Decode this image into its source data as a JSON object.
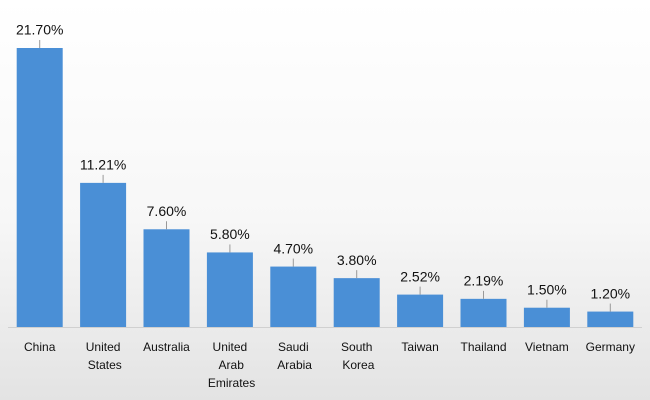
{
  "chart_data": {
    "type": "bar",
    "categories": [
      "China",
      "United States",
      "Australia",
      "United Arab Emirates",
      "Saudi Arabia",
      "South Korea",
      "Taiwan",
      "Thailand",
      "Vietnam",
      "Germany"
    ],
    "values": [
      21.7,
      11.21,
      7.6,
      5.8,
      4.7,
      3.8,
      2.52,
      2.19,
      1.5,
      1.2
    ],
    "value_labels": [
      "21.70%",
      "11.21%",
      "7.60%",
      "5.80%",
      "4.70%",
      "3.80%",
      "2.52%",
      "2.19%",
      "1.50%",
      "1.20%"
    ],
    "color": "#4a8fd6"
  }
}
